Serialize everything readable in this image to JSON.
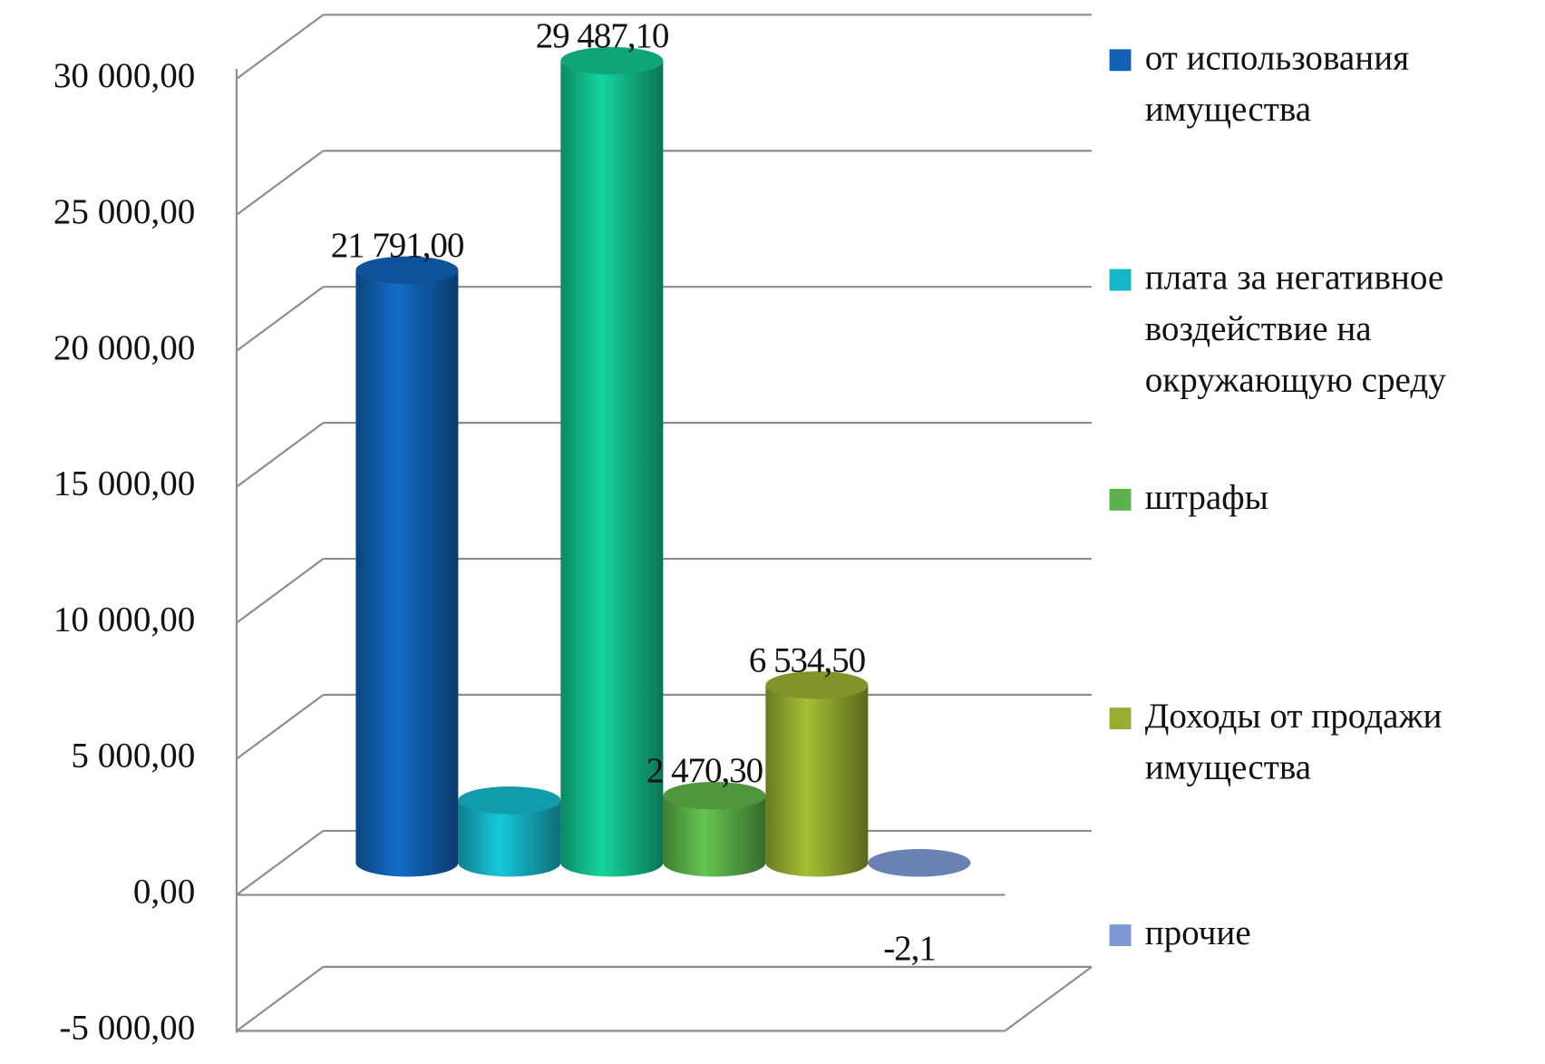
{
  "chart_data": {
    "type": "bar3d",
    "ylim": [
      -5000,
      30000
    ],
    "yticks": [
      {
        "value": -5000,
        "label": "-5 000,00"
      },
      {
        "value": 0,
        "label": "0,00"
      },
      {
        "value": 5000,
        "label": "5 000,00"
      },
      {
        "value": 10000,
        "label": "10 000,00"
      },
      {
        "value": 15000,
        "label": "15 000,00"
      },
      {
        "value": 20000,
        "label": "20 000,00"
      },
      {
        "value": 25000,
        "label": "25 000,00"
      },
      {
        "value": 30000,
        "label": "30 000,00"
      }
    ],
    "grid": true,
    "legend": "right",
    "series": [
      {
        "name": "от использования\nимущества",
        "color": "#1162b5",
        "values": [
          21791
        ],
        "value_labels": [
          "21 791,00"
        ]
      },
      {
        "name": "плата за негативное\nвоздействие на\nокружающую среду",
        "color": "#15b6c8",
        "values": [
          2300
        ]
      },
      {
        "name": null,
        "color": "#12c28e",
        "values": [
          29487.1
        ],
        "value_labels": [
          "29 487,10"
        ]
      },
      {
        "name": "штрафы",
        "color": "#5cb24a",
        "values": [
          2470.3
        ],
        "value_labels": [
          "2 470,30"
        ]
      },
      {
        "name": "Доходы от продажи\nимущества",
        "color": "#96ae30",
        "values": [
          6534.5
        ],
        "value_labels": [
          "6 534,50"
        ]
      },
      {
        "name": "прочие",
        "color": "#7d98d4",
        "values": [
          -2.1
        ],
        "value_labels": [
          "-2,1"
        ]
      }
    ]
  }
}
